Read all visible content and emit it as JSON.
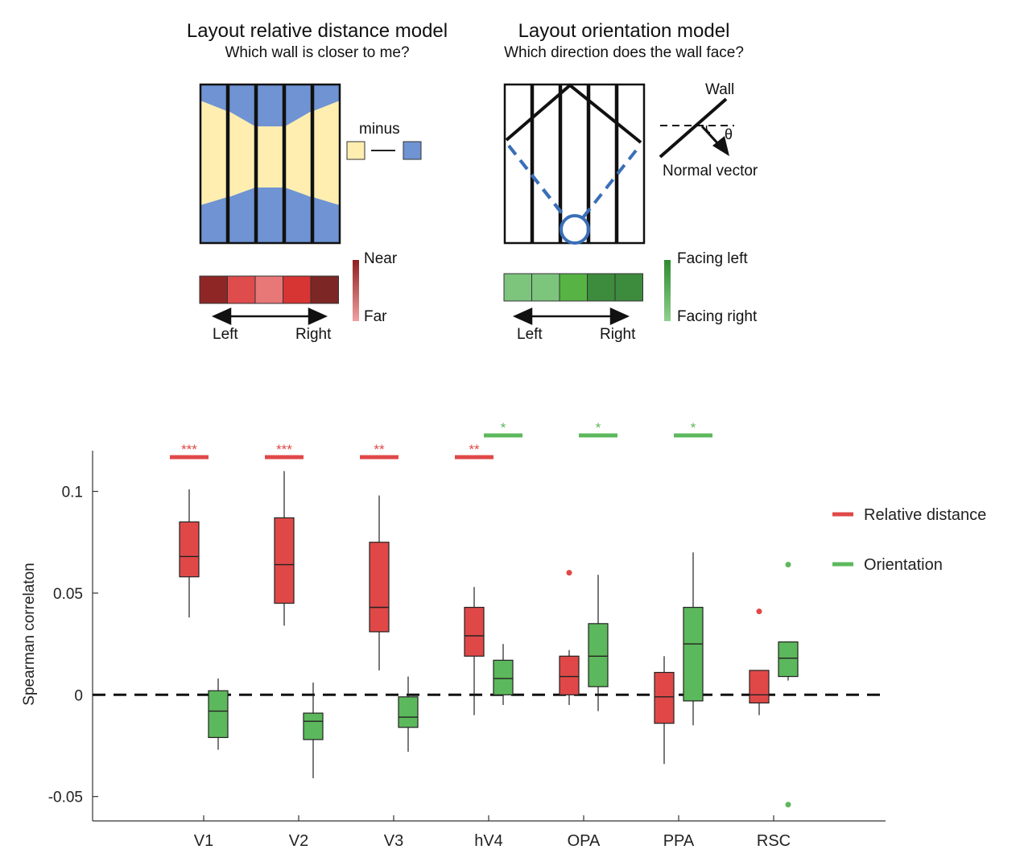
{
  "panel_a": {
    "title": "Layout relative distance model",
    "subtitle": "Which wall is closer to me?",
    "minus_label": "minus",
    "near_label": "Near",
    "far_label": "Far",
    "left_label": "Left",
    "right_label": "Right",
    "colors": {
      "near_color": "#ffeeb0",
      "far_color": "#6f93d3"
    },
    "strip_colors": [
      "#8f2626",
      "#de4c4c",
      "#e87777",
      "#d73434",
      "#7c2626"
    ],
    "scale_colors": [
      "#8f2020",
      "#f0a0a0"
    ]
  },
  "panel_b": {
    "title": "Layout orientation model",
    "subtitle": "Which direction does the wall face?",
    "wall_label": "Wall",
    "theta_label": "θ",
    "normal_label": "Normal vector",
    "facing_left_label": "Facing left",
    "facing_right_label": "Facing right",
    "left_label": "Left",
    "right_label": "Right",
    "strip_colors": [
      "#7dc47d",
      "#7dc47d",
      "#56b344",
      "#3d8b3d",
      "#3d8b3d"
    ],
    "scale_colors": [
      "#2e8b2e",
      "#8fd08f"
    ]
  },
  "chart_data": {
    "type": "box",
    "ylabel": "Spearman correlaton",
    "ylim": [
      -0.062,
      0.12
    ],
    "yticks": [
      -0.05,
      0,
      0.05,
      0.1
    ],
    "ytick_labels": [
      "-0.05",
      "0",
      "0.05",
      "0.1"
    ],
    "categories": [
      "V1",
      "V2",
      "V3",
      "hV4",
      "OPA",
      "PPA",
      "RSC"
    ],
    "legend_position": "right",
    "reference_line": 0,
    "series": [
      {
        "name": "Relative distance",
        "color": "#e04848",
        "boxes": [
          {
            "whisker_low": 0.038,
            "q1": 0.058,
            "median": 0.068,
            "q3": 0.085,
            "whisker_high": 0.101
          },
          {
            "whisker_low": 0.034,
            "q1": 0.045,
            "median": 0.064,
            "q3": 0.087,
            "whisker_high": 0.11
          },
          {
            "whisker_low": 0.012,
            "q1": 0.031,
            "median": 0.043,
            "q3": 0.075,
            "whisker_high": 0.098
          },
          {
            "whisker_low": -0.01,
            "q1": 0.019,
            "median": 0.029,
            "q3": 0.043,
            "whisker_high": 0.053
          },
          {
            "whisker_low": -0.005,
            "q1": 0.0,
            "median": 0.009,
            "q3": 0.019,
            "whisker_high": 0.022
          },
          {
            "whisker_low": -0.034,
            "q1": -0.014,
            "median": -0.001,
            "q3": 0.011,
            "whisker_high": 0.019
          },
          {
            "whisker_low": -0.01,
            "q1": -0.004,
            "median": 0.0,
            "q3": 0.012,
            "whisker_high": 0.012
          }
        ],
        "outliers": [
          [
            4,
            0.06
          ],
          [
            6,
            0.041
          ]
        ],
        "significance": [
          "***",
          "***",
          "**",
          "**",
          "",
          "",
          ""
        ]
      },
      {
        "name": "Orientation",
        "color": "#5cb85c",
        "boxes": [
          {
            "whisker_low": -0.027,
            "q1": -0.021,
            "median": -0.008,
            "q3": 0.002,
            "whisker_high": 0.008
          },
          {
            "whisker_low": -0.041,
            "q1": -0.022,
            "median": -0.013,
            "q3": -0.009,
            "whisker_high": 0.006
          },
          {
            "whisker_low": -0.028,
            "q1": -0.016,
            "median": -0.011,
            "q3": -0.001,
            "whisker_high": 0.009
          },
          {
            "whisker_low": -0.005,
            "q1": 0.0,
            "median": 0.008,
            "q3": 0.017,
            "whisker_high": 0.025
          },
          {
            "whisker_low": -0.008,
            "q1": 0.004,
            "median": 0.019,
            "q3": 0.035,
            "whisker_high": 0.059
          },
          {
            "whisker_low": -0.015,
            "q1": -0.003,
            "median": 0.025,
            "q3": 0.043,
            "whisker_high": 0.07
          },
          {
            "whisker_low": 0.007,
            "q1": 0.009,
            "median": 0.018,
            "q3": 0.026,
            "whisker_high": 0.026
          }
        ],
        "outliers": [
          [
            6,
            0.064
          ],
          [
            6,
            -0.054
          ]
        ],
        "significance": [
          "",
          "",
          "",
          "*",
          "*",
          "*",
          ""
        ]
      }
    ]
  }
}
